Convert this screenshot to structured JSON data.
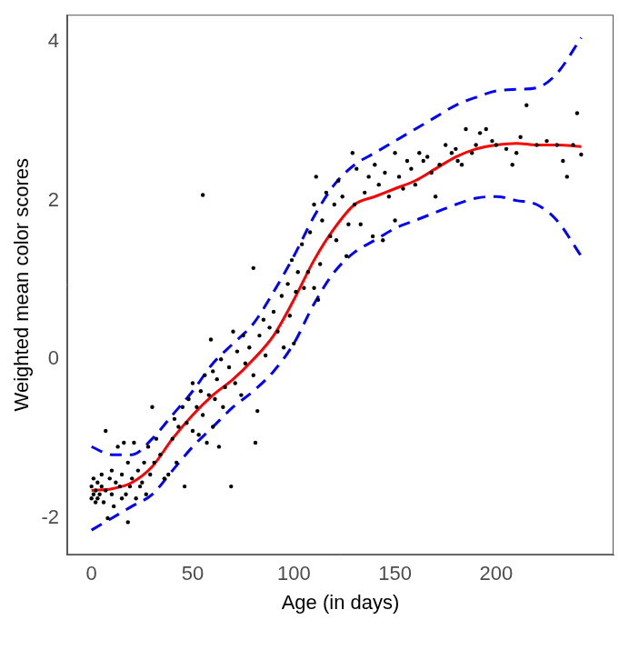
{
  "chart_data": {
    "type": "scatter",
    "x_label": "Age (in days)",
    "y_label": "Weighted mean color scores",
    "xlim": [
      -12,
      258
    ],
    "xticks": [
      0,
      50,
      100,
      150,
      200
    ],
    "ylim": [
      -2.46,
      4.34
    ],
    "yticks": [
      -2,
      0,
      2,
      4
    ],
    "grid": false,
    "series": [
      {
        "type": "scatter",
        "marker": "circle",
        "color": "#000000",
        "x": [
          0,
          0,
          1,
          1,
          2,
          2,
          3,
          3,
          4,
          5,
          5,
          6,
          7,
          7,
          8,
          9,
          10,
          10,
          11,
          12,
          13,
          14,
          15,
          15,
          16,
          17,
          18,
          18,
          19,
          20,
          21,
          22,
          23,
          24,
          25,
          26,
          27,
          28,
          29,
          30,
          31,
          32,
          34,
          36,
          38,
          40,
          41,
          42,
          43,
          45,
          46,
          47,
          48,
          50,
          50,
          52,
          53,
          54,
          55,
          55,
          56,
          57,
          58,
          59,
          60,
          60,
          61,
          62,
          63,
          64,
          65,
          66,
          68,
          69,
          70,
          71,
          72,
          74,
          75,
          76,
          78,
          80,
          80,
          81,
          82,
          83,
          85,
          86,
          88,
          90,
          92,
          94,
          95,
          97,
          98,
          99,
          100,
          101,
          102,
          104,
          105,
          107,
          108,
          110,
          110,
          111,
          112,
          113,
          114,
          116,
          118,
          120,
          121,
          122,
          124,
          126,
          127,
          129,
          130,
          131,
          133,
          135,
          137,
          139,
          140,
          142,
          144,
          145,
          147,
          150,
          150,
          152,
          154,
          156,
          158,
          160,
          162,
          164,
          166,
          168,
          170,
          172,
          175,
          178,
          180,
          181,
          183,
          185,
          188,
          190,
          192,
          195,
          198,
          200,
          205,
          208,
          210,
          212,
          215,
          220,
          225,
          230,
          233,
          235,
          238,
          240,
          242
        ],
        "values": [
          -1.75,
          -1.6,
          -1.5,
          -1.7,
          -1.8,
          -1.65,
          -1.55,
          -1.75,
          -1.7,
          -1.45,
          -1.6,
          -1.8,
          -0.9,
          -1.65,
          -2.0,
          -1.5,
          -1.7,
          -1.4,
          -1.85,
          -1.55,
          -1.1,
          -1.6,
          -1.75,
          -1.45,
          -1.05,
          -1.7,
          -1.3,
          -2.05,
          -1.6,
          -1.5,
          -1.05,
          -1.75,
          -1.4,
          -1.6,
          -1.55,
          -1.3,
          -1.7,
          -1.1,
          -1.45,
          -0.6,
          -1.3,
          -1.0,
          -1.2,
          -1.5,
          -1.45,
          -1.0,
          -0.75,
          -1.3,
          -0.85,
          -0.6,
          -1.6,
          -0.8,
          -0.5,
          -0.3,
          -0.9,
          -0.6,
          -0.95,
          -0.4,
          2.07,
          -0.7,
          -0.2,
          -1.05,
          -0.45,
          0.25,
          -0.15,
          -0.85,
          -0.5,
          -0.25,
          -1.1,
          0.0,
          -0.6,
          -0.35,
          -0.1,
          -1.6,
          0.35,
          -0.3,
          0.1,
          -0.45,
          0.3,
          -0.05,
          0.15,
          1.15,
          -0.2,
          -1.05,
          -0.65,
          0.3,
          0.5,
          0.05,
          0.4,
          0.6,
          0.35,
          0.8,
          0.15,
          0.95,
          0.55,
          1.25,
          0.2,
          0.85,
          1.1,
          1.45,
          0.9,
          1.1,
          1.6,
          1.95,
          0.9,
          2.3,
          0.75,
          1.2,
          1.75,
          2.1,
          1.55,
          1.95,
          1.5,
          2.25,
          2.05,
          1.3,
          1.7,
          2.6,
          1.95,
          2.4,
          1.7,
          2.1,
          2.3,
          1.55,
          2.45,
          2.2,
          1.5,
          2.35,
          2.05,
          1.75,
          2.6,
          2.3,
          2.15,
          2.5,
          2.4,
          2.2,
          2.6,
          2.5,
          2.55,
          2.35,
          2.05,
          2.45,
          2.7,
          2.6,
          2.65,
          2.5,
          2.45,
          2.9,
          2.6,
          2.7,
          2.85,
          2.9,
          2.75,
          2.7,
          2.65,
          2.45,
          2.6,
          2.8,
          3.2,
          2.7,
          2.75,
          2.7,
          2.5,
          2.3,
          2.7,
          3.1,
          2.58
        ]
      },
      {
        "type": "line",
        "marker": "none",
        "line_style": "solid",
        "color": "#ff0000",
        "x": [
          0,
          10,
          20,
          30,
          40,
          50,
          60,
          70,
          80,
          90,
          100,
          110,
          120,
          130,
          140,
          150,
          160,
          170,
          180,
          190,
          200,
          210,
          220,
          230,
          242
        ],
        "values": [
          -1.65,
          -1.63,
          -1.55,
          -1.35,
          -1.0,
          -0.7,
          -0.45,
          -0.25,
          0.0,
          0.3,
          0.75,
          1.25,
          1.65,
          1.95,
          2.05,
          2.15,
          2.25,
          2.4,
          2.55,
          2.65,
          2.7,
          2.72,
          2.7,
          2.7,
          2.68
        ]
      },
      {
        "type": "line",
        "marker": "none",
        "line_style": "dashed",
        "color": "#0000ff",
        "x": [
          0,
          10,
          20,
          30,
          40,
          50,
          60,
          70,
          80,
          90,
          100,
          110,
          120,
          130,
          140,
          150,
          160,
          170,
          180,
          190,
          200,
          210,
          220,
          230,
          242
        ],
        "values": [
          -1.1,
          -1.2,
          -1.2,
          -1.0,
          -0.7,
          -0.4,
          -0.05,
          0.2,
          0.45,
          0.85,
          1.3,
          1.8,
          2.2,
          2.45,
          2.6,
          2.75,
          2.9,
          3.05,
          3.2,
          3.3,
          3.38,
          3.4,
          3.42,
          3.6,
          4.05
        ]
      },
      {
        "type": "line",
        "marker": "none",
        "line_style": "dashed",
        "color": "#0000ff",
        "x": [
          0,
          10,
          20,
          30,
          40,
          50,
          60,
          70,
          80,
          90,
          100,
          110,
          120,
          130,
          140,
          150,
          160,
          170,
          180,
          190,
          200,
          210,
          220,
          230,
          242
        ],
        "values": [
          -2.15,
          -2.0,
          -1.85,
          -1.7,
          -1.4,
          -1.1,
          -0.85,
          -0.6,
          -0.4,
          -0.15,
          0.2,
          0.7,
          1.1,
          1.35,
          1.5,
          1.65,
          1.75,
          1.85,
          1.95,
          2.03,
          2.05,
          2.0,
          1.95,
          1.75,
          1.3
        ]
      }
    ]
  }
}
